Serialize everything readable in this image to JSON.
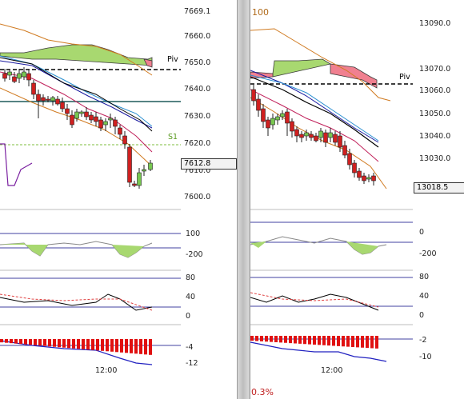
{
  "colors": {
    "up_candle": "#78c850",
    "down_candle": "#d02020",
    "pivot_line": "#000000",
    "s1_line": "#7fbf3f",
    "cloud_green": "#a8d870",
    "cloud_red": "#f08090",
    "histogram": "#e01010"
  },
  "left_chart": {
    "price_ticks": [
      "7669.1",
      "7660.0",
      "7650.0",
      "7640.0",
      "7630.0",
      "7620.0",
      "7610.0",
      "7600.0"
    ],
    "price_box": "7612.8",
    "pivot_label": "Piv",
    "s1_label": "S1",
    "cci_ticks": [
      "100",
      "-200"
    ],
    "stoch_ticks": [
      "80",
      "40",
      "0"
    ],
    "macd_ticks": [
      "-4",
      "-12"
    ],
    "time_label": "12:00"
  },
  "right_chart": {
    "corner_value": "100",
    "price_ticks": [
      "13090.0",
      "13070.0",
      "13060.0",
      "13050.0",
      "13040.0",
      "13030.0"
    ],
    "price_box": "13018.5",
    "pivot_label": "Piv",
    "cci_ticks": [
      "0",
      "-200"
    ],
    "stoch_ticks": [
      "80",
      "40",
      "0"
    ],
    "macd_ticks": [
      "-2",
      "-10"
    ],
    "time_label": "12:00",
    "change_label": "0.3%"
  }
}
